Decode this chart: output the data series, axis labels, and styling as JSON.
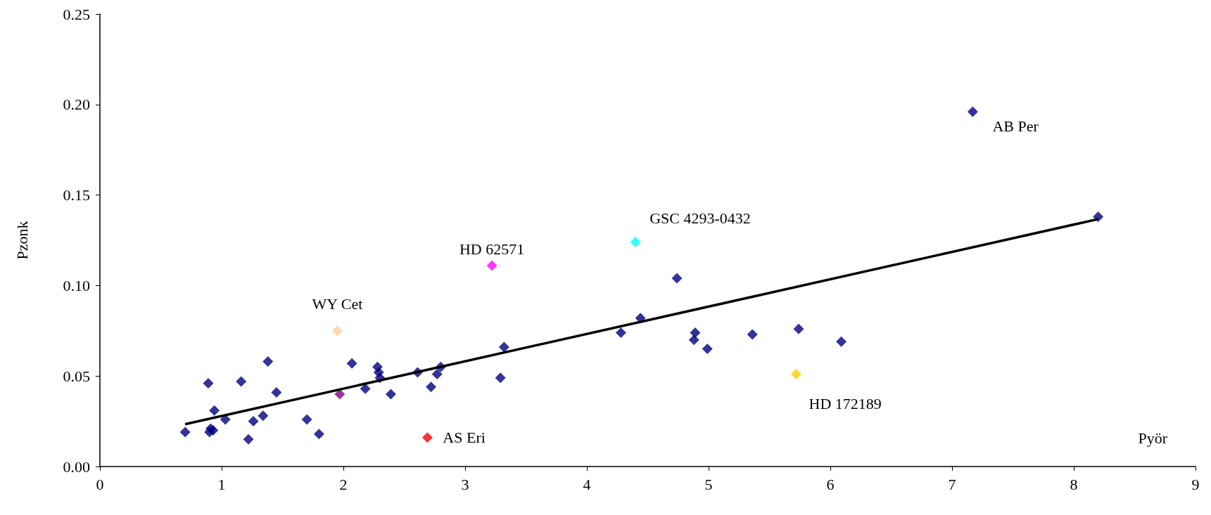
{
  "chart_data": {
    "type": "scatter",
    "xlabel": "Pyör",
    "ylabel": "Pzonk",
    "xlim": [
      0,
      9
    ],
    "xticks": [
      0,
      1,
      2,
      3,
      4,
      5,
      6,
      7,
      8,
      9
    ],
    "ylim": [
      0,
      0.25
    ],
    "yticks": [
      {
        "value": 0,
        "label": "0.00"
      },
      {
        "value": 0.05,
        "label": "0.05"
      },
      {
        "value": 0.1,
        "label": "0.10"
      },
      {
        "value": 0.15,
        "label": "0.15"
      },
      {
        "value": 0.2,
        "label": "0.20"
      },
      {
        "value": 0.25,
        "label": "0.25"
      }
    ],
    "grid": false,
    "marker": "diamond",
    "series": [
      {
        "x": [
          0.7,
          0.89,
          0.9,
          0.91,
          0.93,
          0.94,
          1.03,
          1.16,
          1.22,
          1.26,
          1.34,
          1.38,
          1.45,
          1.7,
          1.8,
          1.95,
          1.97,
          2.07,
          2.18,
          2.28,
          2.29,
          2.3,
          2.39,
          2.61,
          2.69,
          2.72,
          2.77,
          2.8,
          3.22,
          3.29,
          3.32,
          4.28,
          4.4,
          4.44,
          4.74,
          4.88,
          4.89,
          4.99,
          5.36,
          5.72,
          5.74,
          6.09,
          7.17,
          8.2
        ],
        "values": [
          0.019,
          0.046,
          0.019,
          0.021,
          0.02,
          0.031,
          0.026,
          0.047,
          0.015,
          0.025,
          0.028,
          0.058,
          0.041,
          0.026,
          0.018,
          0.075,
          0.04,
          0.057,
          0.043,
          0.055,
          0.052,
          0.049,
          0.04,
          0.052,
          0.016,
          0.044,
          0.051,
          0.055,
          0.111,
          0.049,
          0.066,
          0.074,
          0.124,
          0.082,
          0.104,
          0.07,
          0.074,
          0.065,
          0.073,
          0.051,
          0.076,
          0.069,
          0.196,
          0.138
        ],
        "colors": [
          "#000080",
          "#000080",
          "#000080",
          "#000080",
          "#000080",
          "#000080",
          "#000080",
          "#000080",
          "#000080",
          "#000080",
          "#000080",
          "#000080",
          "#000080",
          "#000080",
          "#000080",
          "#ffcc99",
          "#800080",
          "#000080",
          "#000080",
          "#000080",
          "#000080",
          "#000080",
          "#000080",
          "#000080",
          "#ff0000",
          "#000080",
          "#000080",
          "#000080",
          "#ff00ff",
          "#000080",
          "#000080",
          "#000080",
          "#00ffff",
          "#000080",
          "#000080",
          "#000080",
          "#000080",
          "#000080",
          "#000080",
          "#ffcc00",
          "#000080",
          "#000080",
          "#000080",
          "#000080"
        ]
      },
      {
        "type": "line",
        "x": [
          0.7,
          8.2
        ],
        "values": [
          0.0234,
          0.1367
        ],
        "color": "#000000",
        "marker": "none",
        "line_style": "solid"
      }
    ],
    "annotations": [
      {
        "text": "AB Per",
        "x": 7.17,
        "y": 0.196
      },
      {
        "text": "GSC 4293-0432",
        "x": 4.4,
        "y": 0.124
      },
      {
        "text": "HD 62571",
        "x": 3.22,
        "y": 0.111
      },
      {
        "text": "WY Cet",
        "x": 1.95,
        "y": 0.075
      },
      {
        "text": "HD 172189",
        "x": 5.72,
        "y": 0.051
      },
      {
        "text": "AS Eri",
        "x": 2.69,
        "y": 0.016
      }
    ]
  }
}
